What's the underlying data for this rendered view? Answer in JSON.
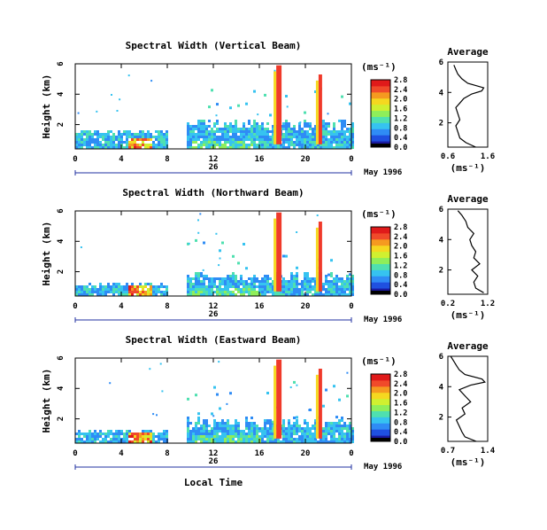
{
  "figure": {
    "bottom_xlabel": "Local Time",
    "colors": {
      "colormap": [
        "#1a1aa0",
        "#1f50e0",
        "#2f8cf5",
        "#36c3f0",
        "#4fe0b0",
        "#8fee5a",
        "#d0f030",
        "#f5d820",
        "#f59a20",
        "#f04a2a",
        "#e01a1a"
      ],
      "rain": "#f03a2a",
      "line": "#000000"
    }
  },
  "chart_data": [
    {
      "type": "heatmap",
      "title": "Spectral Width (Vertical Beam)",
      "ylabel": "Height (km)",
      "yticks": [
        "2",
        "4",
        "6"
      ],
      "xticks": [
        "0",
        "4",
        "8",
        "12",
        "16",
        "20",
        "0"
      ],
      "xlim_hours": [
        0,
        24
      ],
      "ylim_km": [
        0.4,
        6
      ],
      "date_label": "26",
      "date_suffix": "May 1996",
      "colorbar": {
        "unit": "(ms⁻¹)",
        "ticks": [
          "0.0",
          "0.4",
          "0.8",
          "1.2",
          "1.6",
          "2.0",
          "2.4",
          "2.8"
        ]
      },
      "data_gap_hours": [
        8,
        9.5
      ],
      "rain_columns_hours": [
        17.7,
        21.3
      ],
      "average_profile": {
        "type": "line",
        "title": "Average",
        "xlabel": "(ms⁻¹)",
        "xticks": [
          "0.6",
          "1.6"
        ],
        "xlim": [
          0.6,
          1.6
        ],
        "yticks": [
          "2",
          "4",
          "6"
        ],
        "ylim": [
          0.4,
          6
        ],
        "height_km": [
          0.4,
          0.7,
          1.0,
          1.4,
          1.8,
          2.2,
          2.6,
          3.0,
          3.3,
          3.6,
          3.9,
          4.1,
          4.3,
          4.6,
          4.9,
          5.2,
          5.5,
          5.8
        ],
        "width": [
          1.3,
          1.05,
          0.9,
          0.85,
          0.8,
          0.9,
          0.85,
          0.8,
          0.9,
          1.0,
          1.2,
          1.45,
          1.5,
          1.1,
          0.95,
          0.85,
          0.8,
          0.75
        ]
      }
    },
    {
      "type": "heatmap",
      "title": "Spectral Width (Northward Beam)",
      "ylabel": "Height (km)",
      "yticks": [
        "2",
        "4",
        "6"
      ],
      "xticks": [
        "0",
        "4",
        "8",
        "12",
        "16",
        "20",
        "0"
      ],
      "xlim_hours": [
        0,
        24
      ],
      "ylim_km": [
        0.4,
        6
      ],
      "date_label": "26",
      "date_suffix": "May 1996",
      "colorbar": {
        "unit": "(ms⁻¹)",
        "ticks": [
          "0.0",
          "0.4",
          "0.8",
          "1.2",
          "1.6",
          "2.0",
          "2.4",
          "2.8"
        ]
      },
      "data_gap_hours": [
        8,
        9.5
      ],
      "rain_columns_hours": [
        17.7,
        21.3
      ],
      "average_profile": {
        "type": "line",
        "title": "Average",
        "xlabel": "(ms⁻¹)",
        "xticks": [
          "0.2",
          "1.2"
        ],
        "xlim": [
          0.2,
          1.2
        ],
        "yticks": [
          "2",
          "4",
          "6"
        ],
        "ylim": [
          0.4,
          6
        ],
        "height_km": [
          0.5,
          0.8,
          1.2,
          1.6,
          2.0,
          2.4,
          2.8,
          3.2,
          3.6,
          4.0,
          4.4,
          4.8,
          5.2,
          5.6,
          5.9
        ],
        "width": [
          1.1,
          0.9,
          0.85,
          0.95,
          0.8,
          1.0,
          0.85,
          0.9,
          0.8,
          0.75,
          0.85,
          0.7,
          0.65,
          0.55,
          0.45
        ]
      }
    },
    {
      "type": "heatmap",
      "title": "Spectral Width (Eastward Beam)",
      "ylabel": "Height (km)",
      "yticks": [
        "2",
        "4",
        "6"
      ],
      "xticks": [
        "0",
        "4",
        "8",
        "12",
        "16",
        "20",
        "0"
      ],
      "xlim_hours": [
        0,
        24
      ],
      "ylim_km": [
        0.4,
        6
      ],
      "date_label": "26",
      "date_suffix": "May 1996",
      "colorbar": {
        "unit": "(ms⁻¹)",
        "ticks": [
          "0.0",
          "0.4",
          "0.8",
          "1.2",
          "1.6",
          "2.0",
          "2.4",
          "2.8"
        ]
      },
      "data_gap_hours": [
        8,
        9.5
      ],
      "rain_columns_hours": [
        17.7,
        21.3
      ],
      "average_profile": {
        "type": "line",
        "title": "Average",
        "xlabel": "(ms⁻¹)",
        "xticks": [
          "0.7",
          "1.4"
        ],
        "xlim": [
          0.7,
          1.4
        ],
        "yticks": [
          "2",
          "4",
          "6"
        ],
        "ylim": [
          0.4,
          6
        ],
        "height_km": [
          0.4,
          0.7,
          1.0,
          1.4,
          1.8,
          2.2,
          2.6,
          3.0,
          3.4,
          3.8,
          4.1,
          4.3,
          4.5,
          4.8,
          5.1,
          5.4,
          5.7,
          6.0
        ],
        "width": [
          1.2,
          1.0,
          0.95,
          0.9,
          0.85,
          1.0,
          0.95,
          1.1,
          1.0,
          0.9,
          1.1,
          1.35,
          1.3,
          1.0,
          0.9,
          0.85,
          0.8,
          0.75
        ]
      }
    }
  ]
}
